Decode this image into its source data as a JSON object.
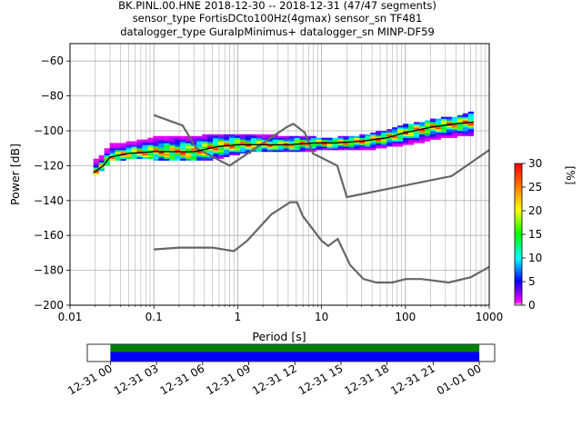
{
  "chart_data": {
    "type": "heatmap",
    "title_lines": [
      "BK.PINL.00.HNE   2018-12-30 -- 2018-12-31  (47/47 segments)",
      "sensor_type FortisDCto100Hz(4gmax) sensor_sn TF481",
      "datalogger_type GuralpMinimus+ datalogger_sn MINP-DF59"
    ],
    "xlabel": "Period [s]",
    "ylabel": "Power [dB]",
    "x_scale": "log",
    "xlim": [
      0.01,
      1000
    ],
    "ylim": [
      -200,
      -50
    ],
    "x_ticks": [
      {
        "value": 0.01,
        "label": "0.01"
      },
      {
        "value": 0.1,
        "label": "0.1"
      },
      {
        "value": 1,
        "label": "1"
      },
      {
        "value": 10,
        "label": "10"
      },
      {
        "value": 100,
        "label": "100"
      },
      {
        "value": 1000,
        "label": "1000"
      }
    ],
    "y_ticks": [
      {
        "value": -60,
        "label": "−60"
      },
      {
        "value": -80,
        "label": "−80"
      },
      {
        "value": -100,
        "label": "−100"
      },
      {
        "value": -120,
        "label": "−120"
      },
      {
        "value": -140,
        "label": "−140"
      },
      {
        "value": -160,
        "label": "−160"
      },
      {
        "value": -180,
        "label": "−180"
      },
      {
        "value": -200,
        "label": "−200"
      }
    ],
    "grid": true,
    "colorbar": {
      "label": "[%]",
      "range": [
        0,
        30
      ],
      "ticks": [
        {
          "value": 0,
          "label": "0"
        },
        {
          "value": 5,
          "label": "5"
        },
        {
          "value": 10,
          "label": "10"
        },
        {
          "value": 15,
          "label": "15"
        },
        {
          "value": 20,
          "label": "20"
        },
        {
          "value": 25,
          "label": "25"
        },
        {
          "value": 30,
          "label": "30"
        }
      ]
    },
    "psd_band": [
      {
        "period": 0.019,
        "low": -126,
        "high": -118
      },
      {
        "period": 0.025,
        "low": -122,
        "high": -114
      },
      {
        "period": 0.03,
        "low": -117,
        "high": -108
      },
      {
        "period": 0.05,
        "low": -116,
        "high": -107
      },
      {
        "period": 0.1,
        "low": -116,
        "high": -104
      },
      {
        "period": 0.2,
        "low": -117,
        "high": -103
      },
      {
        "period": 0.4,
        "low": -117,
        "high": -103
      },
      {
        "period": 0.8,
        "low": -114,
        "high": -102
      },
      {
        "period": 1.5,
        "low": -112,
        "high": -102
      },
      {
        "period": 3,
        "low": -111,
        "high": -103
      },
      {
        "period": 5,
        "low": -112,
        "high": -103
      },
      {
        "period": 8,
        "low": -111,
        "high": -104
      },
      {
        "period": 15,
        "low": -111,
        "high": -104
      },
      {
        "period": 30,
        "low": -111,
        "high": -103
      },
      {
        "period": 60,
        "low": -109,
        "high": -100
      },
      {
        "period": 100,
        "low": -108,
        "high": -97
      },
      {
        "period": 200,
        "low": -105,
        "high": -94
      },
      {
        "period": 400,
        "low": -103,
        "high": -92
      },
      {
        "period": 650,
        "low": -102,
        "high": -89
      }
    ],
    "mode_curve": [
      {
        "period": 0.019,
        "power": -124
      },
      {
        "period": 0.025,
        "power": -120
      },
      {
        "period": 0.03,
        "power": -115
      },
      {
        "period": 0.05,
        "power": -113
      },
      {
        "period": 0.1,
        "power": -112
      },
      {
        "period": 0.3,
        "power": -112
      },
      {
        "period": 0.6,
        "power": -109
      },
      {
        "period": 1,
        "power": -108
      },
      {
        "period": 2,
        "power": -108
      },
      {
        "period": 4,
        "power": -108
      },
      {
        "period": 8,
        "power": -107
      },
      {
        "period": 15,
        "power": -107
      },
      {
        "period": 30,
        "power": -106
      },
      {
        "period": 60,
        "power": -104
      },
      {
        "period": 100,
        "power": -101
      },
      {
        "period": 200,
        "power": -98
      },
      {
        "period": 400,
        "power": -96
      },
      {
        "period": 650,
        "power": -95
      }
    ],
    "nhnm": [
      {
        "period": 0.1,
        "power": -91
      },
      {
        "period": 0.22,
        "power": -97
      },
      {
        "period": 0.32,
        "power": -110
      },
      {
        "period": 0.8,
        "power": -120
      },
      {
        "period": 3.8,
        "power": -98
      },
      {
        "period": 4.6,
        "power": -96
      },
      {
        "period": 6.3,
        "power": -101
      },
      {
        "period": 7.9,
        "power": -113
      },
      {
        "period": 15.4,
        "power": -120
      },
      {
        "period": 20,
        "power": -138
      },
      {
        "period": 354.8,
        "power": -126
      },
      {
        "period": 1000,
        "power": -111
      }
    ],
    "nlnm": [
      {
        "period": 0.1,
        "power": -168
      },
      {
        "period": 0.2,
        "power": -167
      },
      {
        "period": 0.5,
        "power": -167
      },
      {
        "period": 0.9,
        "power": -169
      },
      {
        "period": 1.3,
        "power": -163
      },
      {
        "period": 2.5,
        "power": -148
      },
      {
        "period": 4.2,
        "power": -141
      },
      {
        "period": 5.1,
        "power": -141
      },
      {
        "period": 6,
        "power": -149
      },
      {
        "period": 10,
        "power": -163
      },
      {
        "period": 12,
        "power": -166
      },
      {
        "period": 15.6,
        "power": -162
      },
      {
        "period": 21.9,
        "power": -177
      },
      {
        "period": 31.6,
        "power": -185
      },
      {
        "period": 45,
        "power": -187
      },
      {
        "period": 70,
        "power": -187
      },
      {
        "period": 101,
        "power": -185
      },
      {
        "period": 154,
        "power": -185
      },
      {
        "period": 328,
        "power": -187
      },
      {
        "period": 600,
        "power": -184
      },
      {
        "period": 1000,
        "power": -178
      }
    ],
    "coverage": {
      "time_ticks": [
        "12-31 00",
        "12-31 03",
        "12-31 06",
        "12-31 09",
        "12-31 12",
        "12-31 15",
        "12-31 18",
        "12-31 21",
        "01-01 00"
      ],
      "range_hours": [
        -1.5,
        25
      ],
      "data_hours": [
        0,
        24
      ]
    }
  }
}
